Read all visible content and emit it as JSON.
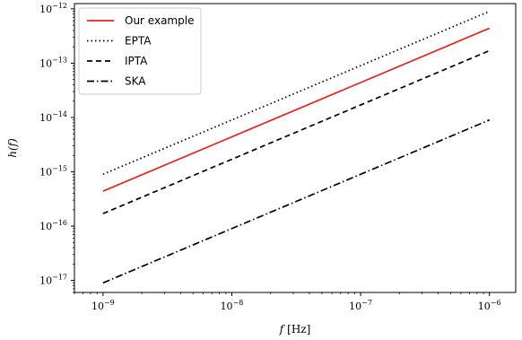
{
  "chart_data": {
    "type": "line",
    "xlabel": {
      "var": "f",
      "unit": "[Hz]"
    },
    "ylabel": "h(f)",
    "xscale": "log",
    "yscale": "log",
    "xlim": [
      6e-10,
      1.6e-06
    ],
    "ylim": [
      6e-18,
      1.25e-12
    ],
    "x_ticks": [
      {
        "label": "10",
        "exp": "−9",
        "value": 1e-09
      },
      {
        "label": "10",
        "exp": "−8",
        "value": 1e-08
      },
      {
        "label": "10",
        "exp": "−7",
        "value": 1e-07
      },
      {
        "label": "10",
        "exp": "−6",
        "value": 1e-06
      }
    ],
    "y_ticks": [
      {
        "label": "10",
        "exp": "−17",
        "value": 1e-17
      },
      {
        "label": "10",
        "exp": "−16",
        "value": 1e-16
      },
      {
        "label": "10",
        "exp": "−15",
        "value": 1e-15
      },
      {
        "label": "10",
        "exp": "−14",
        "value": 1e-14
      },
      {
        "label": "10",
        "exp": "−13",
        "value": 1e-13
      },
      {
        "label": "10",
        "exp": "−12",
        "value": 1e-12
      }
    ],
    "legend_position": "top-left",
    "grid": false,
    "series": [
      {
        "name": "Our example",
        "color": "#e8231b",
        "style": "solid",
        "x": [
          1e-09,
          1e-06
        ],
        "y": [
          4.4e-16,
          4.4e-13
        ]
      },
      {
        "name": "EPTA",
        "color": "#000000",
        "style": "dotted",
        "x": [
          1e-09,
          1e-06
        ],
        "y": [
          9e-16,
          9e-13
        ]
      },
      {
        "name": "IPTA",
        "color": "#000000",
        "style": "dashed",
        "x": [
          1e-09,
          1e-06
        ],
        "y": [
          1.7e-16,
          1.7e-13
        ]
      },
      {
        "name": "SKA",
        "color": "#000000",
        "style": "dashdot",
        "x": [
          1e-09,
          1e-06
        ],
        "y": [
          9e-18,
          9e-15
        ]
      }
    ]
  }
}
